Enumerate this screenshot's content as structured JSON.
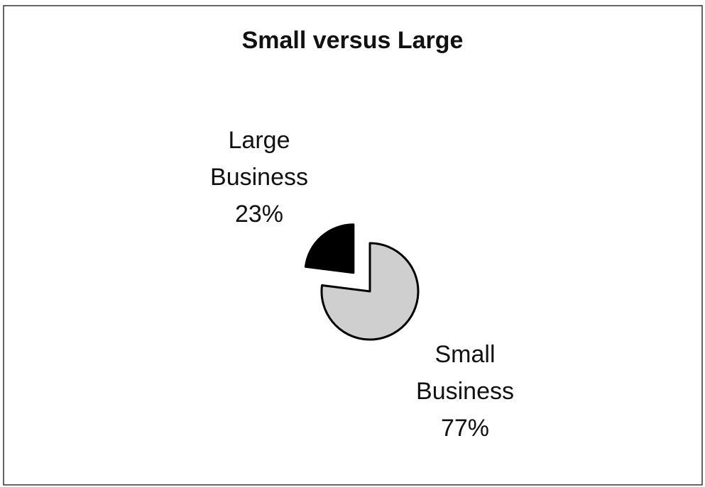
{
  "chart_data": {
    "type": "pie",
    "title": "Small versus Large",
    "categories": [
      "Small Business",
      "Large Business"
    ],
    "values": [
      77,
      23
    ],
    "value_labels": [
      "77%",
      "23%"
    ],
    "colors": [
      "#cfcfcf",
      "#000000"
    ]
  }
}
